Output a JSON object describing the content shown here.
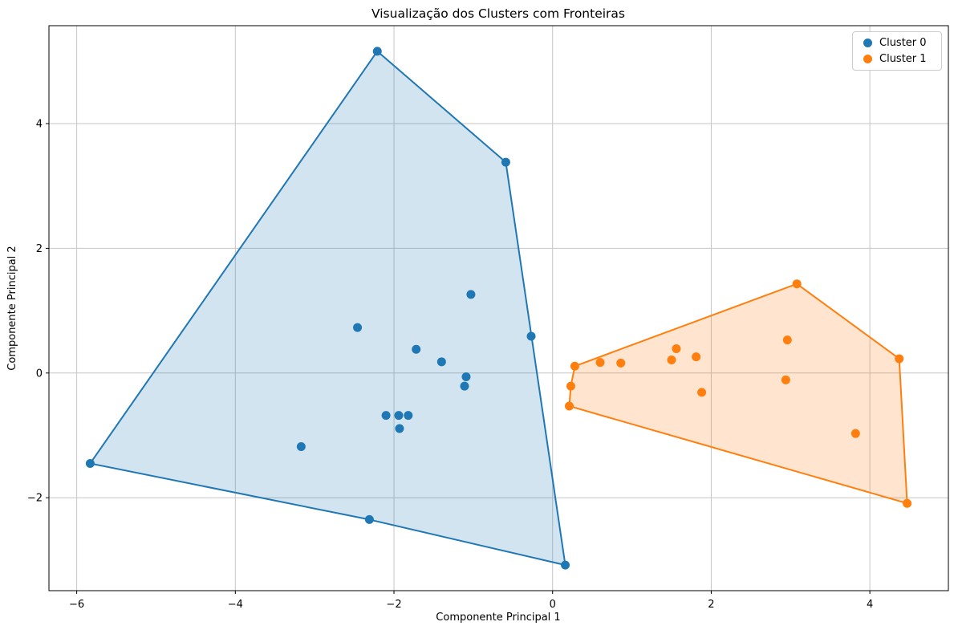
{
  "title": "Visualização dos Clusters com Fronteiras",
  "xlabel": "Componente Principal 1",
  "ylabel": "Componente Principal 2",
  "legend": {
    "items": [
      {
        "label": "Cluster 0",
        "color": "#1f77b4"
      },
      {
        "label": "Cluster 1",
        "color": "#ff7f0e"
      }
    ],
    "position": "upper right"
  },
  "chart_data": {
    "type": "scatter",
    "title": "Visualização dos Clusters com Fronteiras",
    "xlabel": "Componente Principal 1",
    "ylabel": "Componente Principal 2",
    "xlim": [
      -6.35,
      4.99
    ],
    "ylim": [
      -3.49,
      5.57
    ],
    "xticks": [
      -6,
      -4,
      -2,
      0,
      2,
      4
    ],
    "yticks": [
      -2,
      0,
      2,
      4
    ],
    "grid": true,
    "legend_position": "upper right",
    "marker_radius": 5.5,
    "hull_fill_opacity": 0.2,
    "hull_stroke_width": 2,
    "series": [
      {
        "name": "Cluster 0",
        "color": "#1f77b4",
        "points": [
          [
            -5.83,
            -1.45
          ],
          [
            -3.17,
            -1.18
          ],
          [
            -2.46,
            0.73
          ],
          [
            -2.31,
            -2.35
          ],
          [
            -2.21,
            5.16
          ],
          [
            -2.1,
            -0.68
          ],
          [
            -1.94,
            -0.68
          ],
          [
            -1.93,
            -0.89
          ],
          [
            -1.82,
            -0.68
          ],
          [
            -1.72,
            0.38
          ],
          [
            -1.4,
            0.18
          ],
          [
            -1.11,
            -0.21
          ],
          [
            -1.09,
            -0.06
          ],
          [
            -1.03,
            1.26
          ],
          [
            -0.59,
            3.38
          ],
          [
            -0.27,
            0.59
          ],
          [
            0.16,
            -3.08
          ]
        ],
        "hull": [
          [
            -5.83,
            -1.45
          ],
          [
            -2.21,
            5.16
          ],
          [
            -0.59,
            3.38
          ],
          [
            0.16,
            -3.08
          ],
          [
            -2.31,
            -2.35
          ]
        ]
      },
      {
        "name": "Cluster 1",
        "color": "#ff7f0e",
        "points": [
          [
            0.21,
            -0.53
          ],
          [
            0.23,
            -0.21
          ],
          [
            0.28,
            0.11
          ],
          [
            0.6,
            0.17
          ],
          [
            0.86,
            0.16
          ],
          [
            1.5,
            0.21
          ],
          [
            1.56,
            0.39
          ],
          [
            1.81,
            0.26
          ],
          [
            1.88,
            -0.31
          ],
          [
            2.94,
            -0.11
          ],
          [
            2.96,
            0.53
          ],
          [
            3.08,
            1.43
          ],
          [
            3.82,
            -0.97
          ],
          [
            4.37,
            0.23
          ],
          [
            4.47,
            -2.09
          ]
        ],
        "hull": [
          [
            0.28,
            0.11
          ],
          [
            3.08,
            1.43
          ],
          [
            4.37,
            0.23
          ],
          [
            4.47,
            -2.09
          ],
          [
            0.21,
            -0.53
          ],
          [
            0.23,
            -0.21
          ]
        ]
      }
    ]
  }
}
